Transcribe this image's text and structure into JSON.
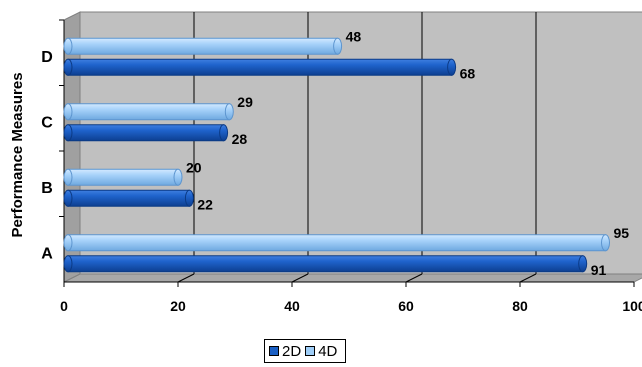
{
  "chart_data": {
    "type": "bar",
    "orientation": "horizontal",
    "style": "3d-cylinder",
    "categories": [
      "A",
      "B",
      "C",
      "D"
    ],
    "series": [
      {
        "name": "2D",
        "values": [
          91,
          22,
          28,
          68
        ],
        "color": "#1a5fc4"
      },
      {
        "name": "4D",
        "values": [
          95,
          20,
          29,
          48
        ],
        "color": "#9ecdf7"
      }
    ],
    "ylabel": "Performance Measures",
    "xlabel": "",
    "xlim": [
      0,
      100
    ],
    "xticks": [
      "0",
      "20",
      "40",
      "60",
      "80",
      "100"
    ],
    "grid": true,
    "legend_position": "bottom"
  }
}
